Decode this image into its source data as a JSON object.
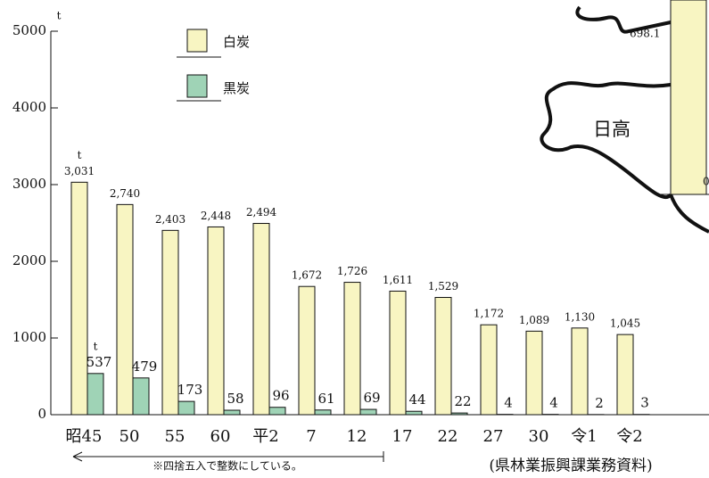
{
  "chart_data": {
    "type": "bar",
    "unit": "t",
    "categories": [
      "昭45",
      "50",
      "55",
      "60",
      "平2",
      "7",
      "12",
      "17",
      "22",
      "27",
      "30",
      "令1",
      "令2"
    ],
    "series": [
      {
        "name": "白炭",
        "color": "#f8f5c2",
        "values": [
          3031,
          2740,
          2403,
          2448,
          2494,
          1672,
          1726,
          1611,
          1529,
          1172,
          1089,
          1130,
          1045
        ],
        "value_labels": [
          "3,031",
          "2,740",
          "2,403",
          "2,448",
          "2,494",
          "1,672",
          "1,726",
          "1,611",
          "1,529",
          "1,172",
          "1,089",
          "1,130",
          "1,045"
        ]
      },
      {
        "name": "黒炭",
        "color": "#9fd3b6",
        "values": [
          537,
          479,
          173,
          58,
          96,
          61,
          69,
          44,
          22,
          4,
          4,
          2,
          3
        ]
      }
    ],
    "ylim": [
      0,
      5000
    ],
    "yticks": [
      0,
      1000,
      2000,
      3000,
      4000,
      5000
    ],
    "note": "※四捨五入で整数にしている。",
    "source": "(県林業振興課業務資料)",
    "map": {
      "region": "日高",
      "value_label": "698.1",
      "edge_label": "0"
    }
  }
}
